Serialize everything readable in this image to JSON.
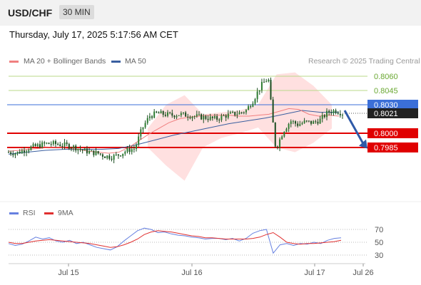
{
  "header": {
    "pair": "USD/CHF",
    "timeframe": "30 MIN",
    "timestamp": "Thursday, July 17, 2025 5:17:56 AM CET"
  },
  "legend": {
    "ma20": "MA 20 + Bollinger Bands",
    "ma50": "MA 50",
    "credit": "Research © 2025 Trading Central",
    "rsi": "RSI",
    "ma9": "9MA"
  },
  "colors": {
    "candle": "#2e7d32",
    "ma20": "#f08080",
    "ma50": "#3a5fa0",
    "support": "#e00000",
    "resistance_line": "#b8d98a",
    "resistance_text": "#6aa832",
    "pivot": "#3b6fd8",
    "bollinger_fill": "#ffd6d6",
    "rsi": "#6680e0",
    "rsi_ma": "#e03030"
  },
  "chart_data": [
    {
      "type": "line",
      "name": "USD/CHF 30 MIN price",
      "x_ticks": [
        "Jul 15",
        "Jul 16",
        "Jul 17",
        "Jul 26"
      ],
      "levels": [
        {
          "value": 0.806,
          "label": "0.8060",
          "kind": "resistance"
        },
        {
          "value": 0.8045,
          "label": "0.8045",
          "kind": "resistance"
        },
        {
          "value": 0.803,
          "label": "0.8030",
          "kind": "pivot"
        },
        {
          "value": 0.8,
          "label": "0.8000",
          "kind": "support"
        },
        {
          "value": 0.7985,
          "label": "0.7985",
          "kind": "support"
        }
      ],
      "last_price": {
        "value": 0.8021,
        "label": "0.8021"
      },
      "price_path": [
        0.798,
        0.7979,
        0.7982,
        0.7985,
        0.7987,
        0.7989,
        0.7989,
        0.7988,
        0.7987,
        0.7985,
        0.7982,
        0.798,
        0.7979,
        0.7976,
        0.7975,
        0.7978,
        0.7982,
        0.7984,
        0.8005,
        0.8018,
        0.8021,
        0.802,
        0.8019,
        0.802,
        0.8019,
        0.8018,
        0.8017,
        0.8016,
        0.8015,
        0.8018,
        0.802,
        0.8021,
        0.8024,
        0.8035,
        0.805,
        0.8058,
        0.7983,
        0.8002,
        0.8013,
        0.8009,
        0.8012,
        0.8011,
        0.8014,
        0.8022,
        0.8024,
        0.8021
      ],
      "ma20": [
        0.7981,
        0.7982,
        0.7983,
        0.7984,
        0.7985,
        0.7985,
        0.7984,
        0.7983,
        0.7981,
        0.798,
        0.7979,
        0.798,
        0.7985,
        0.7992,
        0.7999,
        0.8005,
        0.8011,
        0.8015,
        0.8017,
        0.8018,
        0.8019,
        0.8019,
        0.8019,
        0.8018,
        0.8018,
        0.8019,
        0.802,
        0.8023,
        0.8026,
        0.8025,
        0.802,
        0.8018,
        0.8019,
        0.8018
      ],
      "ma50": [
        0.7978,
        0.798,
        0.7982,
        0.7983,
        0.7983,
        0.7983,
        0.7984,
        0.7988,
        0.7993,
        0.7998,
        0.8002,
        0.8006,
        0.801,
        0.8013,
        0.8016,
        0.802,
        0.8024,
        0.8022,
        0.8022
      ],
      "bb_upper": [
        0.8005,
        0.803,
        0.804,
        0.802,
        0.8022,
        0.8024,
        0.803,
        0.8062,
        0.8064,
        0.805,
        0.803
      ],
      "bb_lower": [
        0.7985,
        0.7966,
        0.795,
        0.7985,
        0.7995,
        0.8,
        0.8006,
        0.7985,
        0.798,
        0.799,
        0.8005
      ],
      "forecast": {
        "from": 0.8024,
        "to": 0.7986
      }
    },
    {
      "type": "line",
      "name": "RSI",
      "y_ticks": [
        70,
        50,
        30
      ],
      "ylim": [
        20,
        80
      ],
      "rsi": [
        48,
        45,
        47,
        52,
        58,
        55,
        57,
        52,
        50,
        53,
        48,
        50,
        46,
        42,
        40,
        38,
        43,
        52,
        60,
        68,
        72,
        70,
        65,
        66,
        63,
        61,
        60,
        58,
        57,
        55,
        56,
        56,
        54,
        56,
        52,
        56,
        64,
        68,
        70,
        33,
        46,
        48,
        45,
        48,
        47,
        50,
        48,
        53,
        56,
        57
      ],
      "rsi_ma": [
        50,
        48,
        48,
        50,
        52,
        53,
        54,
        53,
        52,
        51,
        50,
        49,
        48,
        46,
        44,
        42,
        43,
        46,
        50,
        55,
        62,
        66,
        68,
        67,
        66,
        64,
        62,
        60,
        59,
        57,
        57,
        56,
        55,
        55,
        55,
        55,
        56,
        58,
        62,
        65,
        58,
        50,
        48,
        47,
        48,
        48,
        49,
        50,
        51,
        53
      ]
    }
  ]
}
